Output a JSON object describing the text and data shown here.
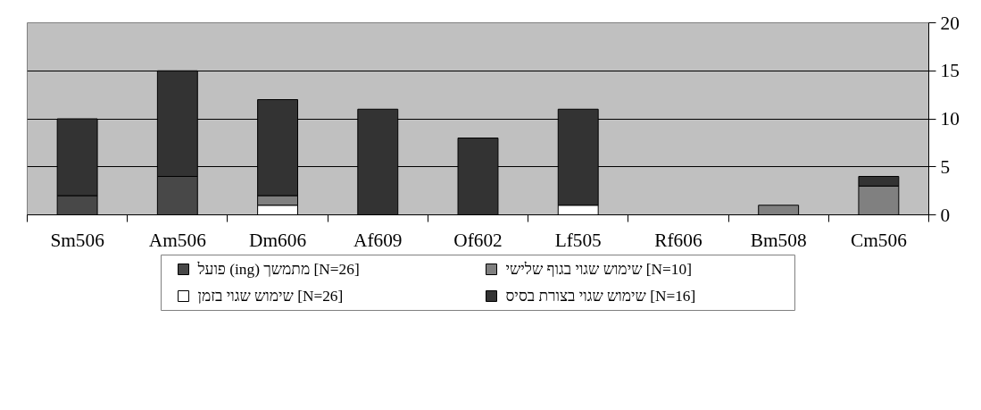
{
  "chart_data": {
    "type": "bar",
    "stacked": true,
    "categories": [
      "Sm506",
      "Am506",
      "Dm606",
      "Af609",
      "Of602",
      "Lf505",
      "Rf606",
      "Bm508",
      "Cm506"
    ],
    "series": [
      {
        "name": "פועל (ing) מתמשך [N=26]",
        "color": "#484848",
        "values": [
          2,
          4,
          null,
          null,
          null,
          null,
          null,
          null,
          null
        ]
      },
      {
        "name": "שימוש שגוי בזמן [N=26]",
        "color": "#ffffff",
        "values": [
          null,
          null,
          1,
          null,
          null,
          1,
          null,
          null,
          null
        ]
      },
      {
        "name": "שימוש שגוי בגוף שלישי [N=10]",
        "color": "#808080",
        "values": [
          null,
          null,
          1,
          null,
          null,
          null,
          null,
          1,
          3
        ]
      },
      {
        "name": "שימוש שגוי בצורת בסיס [N=16]",
        "color": "#333333",
        "values": [
          8,
          11,
          10,
          11,
          8,
          10,
          null,
          null,
          1
        ]
      }
    ],
    "ylim": [
      0,
      20
    ],
    "yticks": [
      0,
      5,
      10,
      15,
      20
    ],
    "grid": "y",
    "legend": "bottom"
  }
}
